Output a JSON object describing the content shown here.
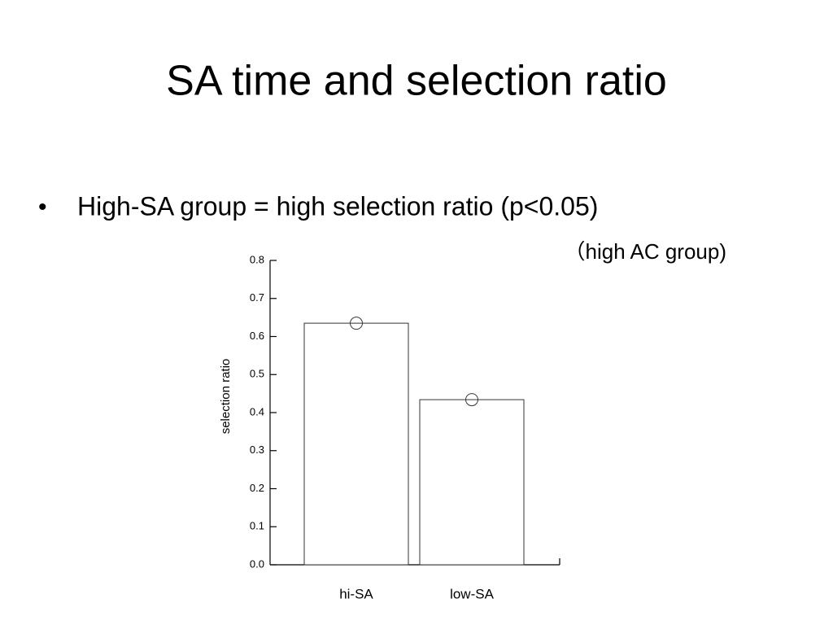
{
  "title": "SA time and selection ratio",
  "bullets": [
    "High-SA group = high selection ratio (p<0.05)"
  ],
  "note": "（high AC group)",
  "chart_data": {
    "type": "bar",
    "y_label": "selection ratio",
    "categories": [
      "hi-SA",
      "low-SA"
    ],
    "values": [
      0.635,
      0.434
    ],
    "color": "#ffffff",
    "ylim": [
      0,
      0.8
    ],
    "yticks": [
      {
        "value": 0,
        "label": "0.0"
      },
      0.1,
      0.2,
      0.3,
      0.4,
      0.5,
      0.6,
      0.7,
      0.8
    ]
  }
}
